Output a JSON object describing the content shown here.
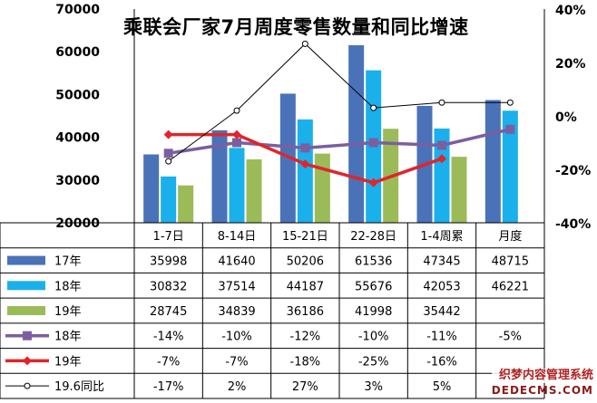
{
  "chart_data": {
    "type": "bar",
    "title": "乘联会厂家7月周度零售数量和同比增速",
    "categories": [
      "1-7日",
      "8-14日",
      "15-21日",
      "22-28日",
      "1-4周累",
      "月度"
    ],
    "y_left": {
      "min": 20000,
      "max": 70000,
      "ticks": [
        "20000",
        "30000",
        "40000",
        "50000",
        "60000",
        "70000"
      ]
    },
    "y_right": {
      "min": -40,
      "max": 40,
      "ticks": [
        "-40%",
        "-20%",
        "0%",
        "20%",
        "40%"
      ]
    },
    "bar_series": [
      {
        "name": "17年",
        "color": "#4a72b8",
        "values": [
          35998,
          41640,
          50206,
          61536,
          47345,
          48715
        ],
        "labels": [
          "35998",
          "41640",
          "50206",
          "61536",
          "47345",
          "48715"
        ]
      },
      {
        "name": "18年",
        "color": "#1ab0ec",
        "values": [
          30832,
          37514,
          44187,
          55676,
          42053,
          46221
        ],
        "labels": [
          "30832",
          "37514",
          "44187",
          "55676",
          "42053",
          "46221"
        ]
      },
      {
        "name": "19年",
        "color": "#9bbb59",
        "values": [
          28745,
          34839,
          36186,
          41998,
          35442,
          null
        ],
        "labels": [
          "28745",
          "34839",
          "36186",
          "41998",
          "35442",
          ""
        ]
      }
    ],
    "line_series": [
      {
        "name": "18年",
        "color": "#7a5fa0",
        "marker": "square",
        "values": [
          -14,
          -10,
          -12,
          -10,
          -11,
          -5
        ],
        "labels": [
          "-14%",
          "-10%",
          "-12%",
          "-10%",
          "-11%",
          "-5%"
        ]
      },
      {
        "name": "19年",
        "color": "#e0252b",
        "marker": "diamond",
        "values": [
          -7,
          -7,
          -18,
          -25,
          -16,
          null
        ],
        "labels": [
          "-7%",
          "-7%",
          "-18%",
          "-25%",
          "-16%",
          ""
        ]
      },
      {
        "name": "19.6同比",
        "color": "#000000",
        "marker": "circle",
        "values": [
          -17,
          2,
          27,
          3,
          5,
          5
        ],
        "labels": [
          "-17%",
          "2%",
          "27%",
          "3%",
          "5%",
          ""
        ]
      }
    ]
  },
  "watermark": {
    "line1": "织梦内容管理系统",
    "line2": "DEDECMS.COM"
  }
}
